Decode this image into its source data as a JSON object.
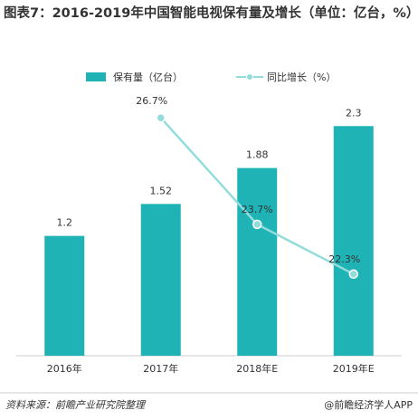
{
  "chart_data": {
    "type": "bar",
    "title": "图表7：2016-2019年中国智能电视保有量及增长（单位：亿台，%）",
    "categories": [
      "2016年",
      "2017年",
      "2018年E",
      "2019年E"
    ],
    "series": [
      {
        "name": "保有量（亿台）",
        "type": "bar",
        "color": "#1fb3b6",
        "values": [
          1.2,
          1.52,
          1.88,
          2.3
        ]
      },
      {
        "name": "同比增长（%）",
        "type": "line",
        "axis": "y2",
        "color": "#93dcdc",
        "values": [
          null,
          26.7,
          23.7,
          22.3
        ],
        "value_labels": [
          null,
          "26.7%",
          "23.7%",
          "22.3%"
        ]
      }
    ],
    "ylim": [
      0,
      3.2
    ],
    "y2lim": [
      20,
      29
    ],
    "source": "资料来源：前瞻产业研究院整理",
    "credit": "@前瞻经济学人APP"
  }
}
